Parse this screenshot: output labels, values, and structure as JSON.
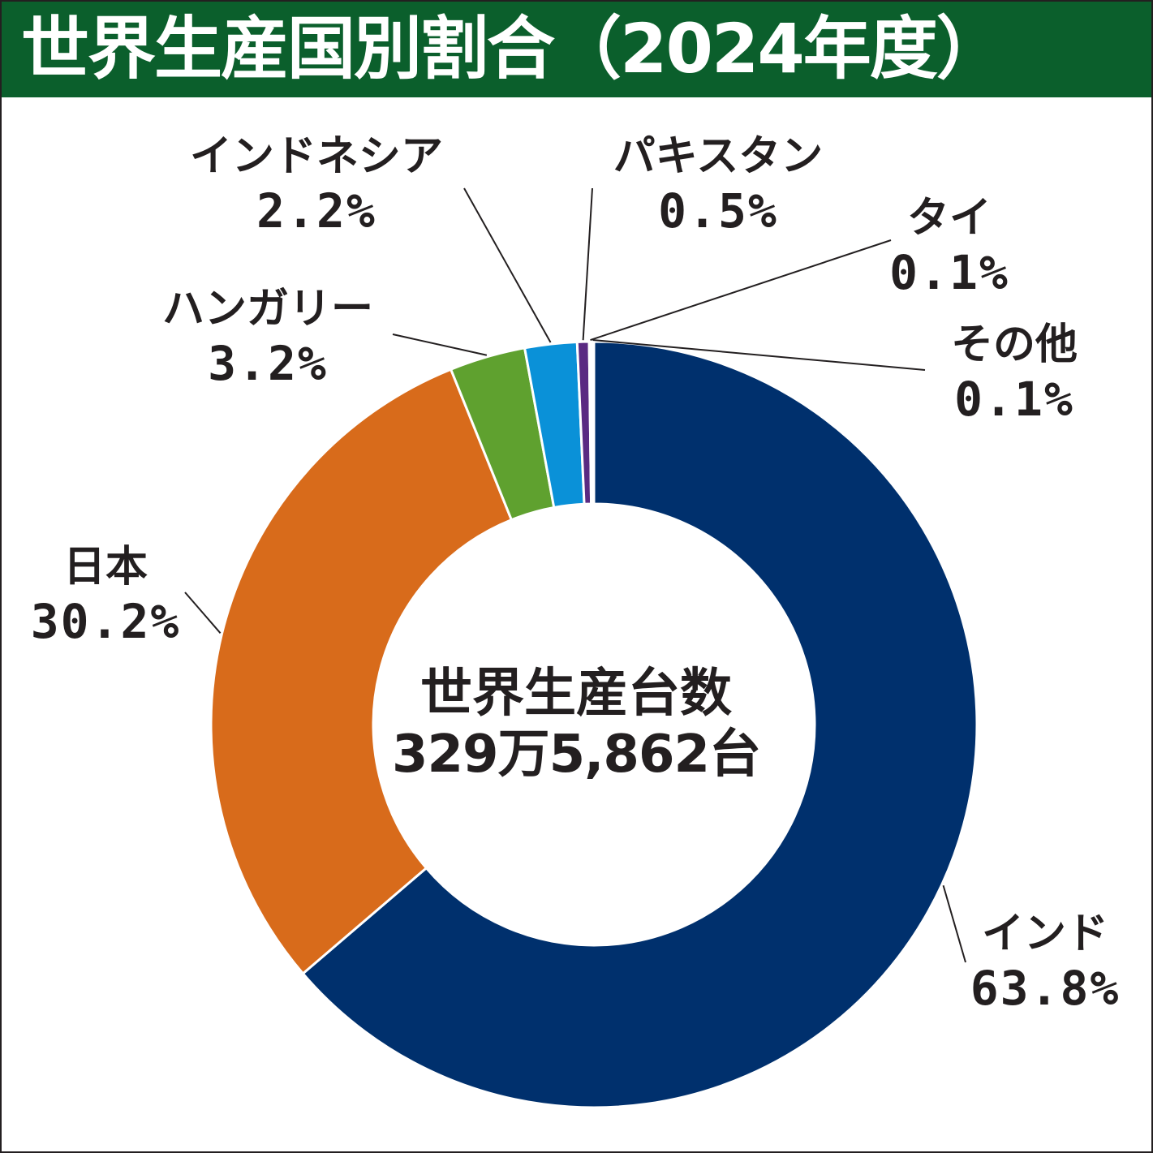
{
  "title": "世界生産国別割合（2024年度）",
  "center": {
    "title": "世界生産台数",
    "value": "329万5,862台"
  },
  "chart_data": {
    "type": "pie",
    "donut": true,
    "start": "12 o'clock, clockwise",
    "slices": [
      {
        "label": "インド",
        "value": 63.8,
        "pct": "63.8%",
        "color": "#00306d"
      },
      {
        "label": "日本",
        "value": 30.2,
        "pct": "30.2%",
        "color": "#d86b1b"
      },
      {
        "label": "ハンガリー",
        "value": 3.2,
        "pct": "3.2%",
        "color": "#5fa12f"
      },
      {
        "label": "インドネシア",
        "value": 2.2,
        "pct": "2.2%",
        "color": "#0a91d8"
      },
      {
        "label": "パキスタン",
        "value": 0.5,
        "pct": "0.5%",
        "color": "#5a2a82"
      },
      {
        "label": "タイ",
        "value": 0.1,
        "pct": "0.1%",
        "color": "#c8102e"
      },
      {
        "label": "その他",
        "value": 0.1,
        "pct": "0.1%",
        "color": "#6d6e71"
      }
    ]
  }
}
